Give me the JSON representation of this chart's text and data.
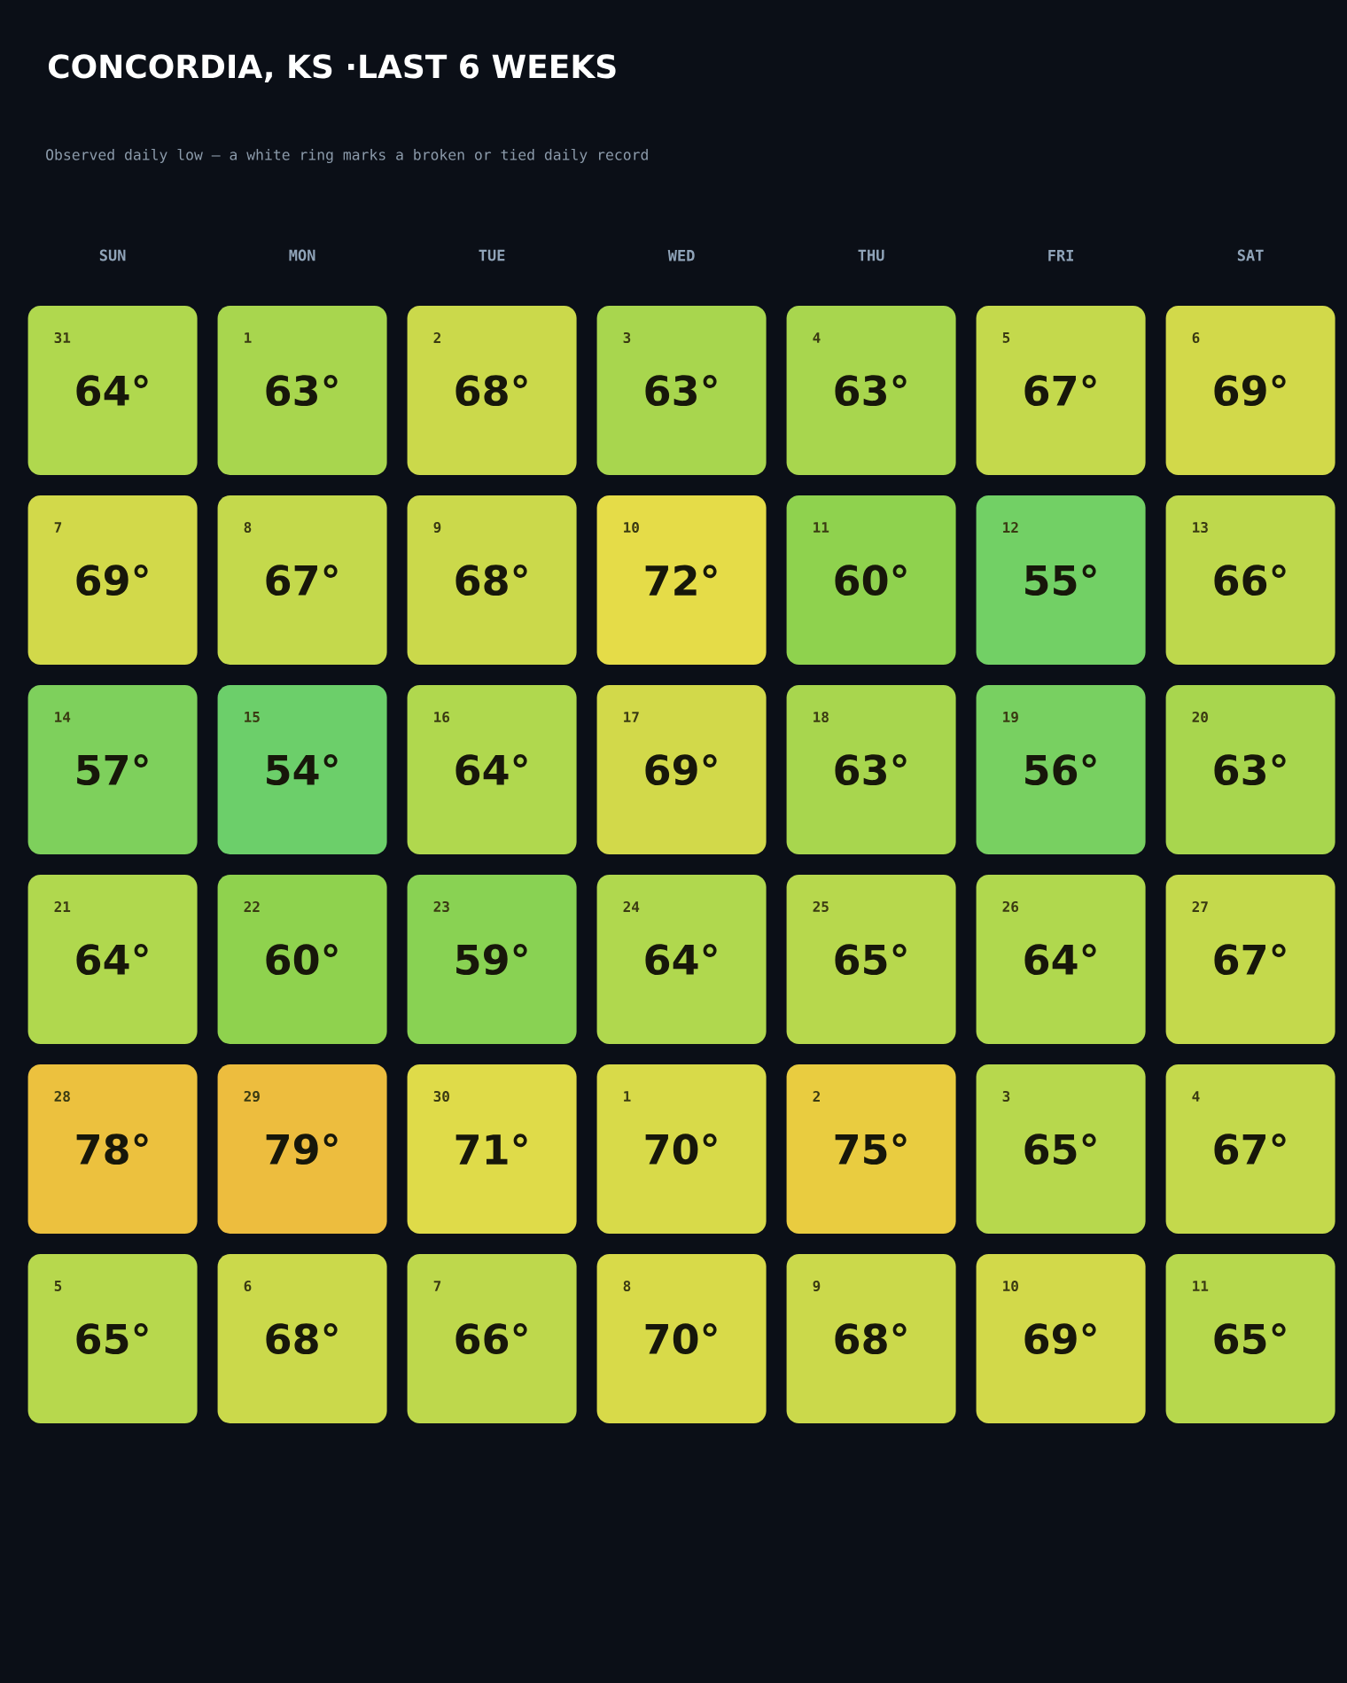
{
  "chart_data": {
    "type": "heatmap",
    "title": "CONCORDIA, KS ·LAST 6 WEEKS",
    "subtitle": "Observed daily low — a white ring marks a broken or tied daily record",
    "categories": [
      "SUN",
      "MON",
      "TUE",
      "WED",
      "THU",
      "FRI",
      "SAT"
    ],
    "y_categories": [
      null,
      null,
      null,
      null,
      null,
      null
    ],
    "cells": [
      [
        64,
        63,
        68,
        63,
        63,
        67,
        69
      ],
      [
        69,
        67,
        68,
        72,
        60,
        55,
        66
      ],
      [
        57,
        54,
        64,
        69,
        63,
        56,
        63
      ],
      [
        64,
        60,
        59,
        64,
        65,
        64,
        67
      ],
      [
        78,
        79,
        71,
        70,
        75,
        65,
        67
      ],
      [
        65,
        68,
        66,
        70,
        68,
        69,
        65
      ]
    ],
    "cell_labels": [
      [
        "64°",
        "63°",
        "68°",
        "63°",
        "63°",
        "67°",
        "69°"
      ],
      [
        "69°",
        "67°",
        "68°",
        "72°",
        "60°",
        "55°",
        "66°"
      ],
      [
        "57°",
        "54°",
        "64°",
        "69°",
        "63°",
        "56°",
        "63°"
      ],
      [
        "64°",
        "60°",
        "59°",
        "64°",
        "65°",
        "64°",
        "67°"
      ],
      [
        "78°",
        "79°",
        "71°",
        "70°",
        "75°",
        "65°",
        "67°"
      ],
      [
        "65°",
        "68°",
        "66°",
        "70°",
        "68°",
        "69°",
        "65°"
      ]
    ],
    "annotations": [
      "31",
      "1",
      "2",
      "3",
      "4",
      "5",
      "6",
      "7",
      "8",
      "9",
      "10",
      "11",
      "12",
      "13",
      "14",
      "15",
      "16",
      "17",
      "18",
      "19",
      "20",
      "21",
      "22",
      "23",
      "24",
      "25",
      "26",
      "27",
      "28",
      "29",
      "30",
      "1",
      "2",
      "3",
      "4",
      "5",
      "6",
      "7",
      "8",
      "9",
      "10",
      "11"
    ]
  }
}
